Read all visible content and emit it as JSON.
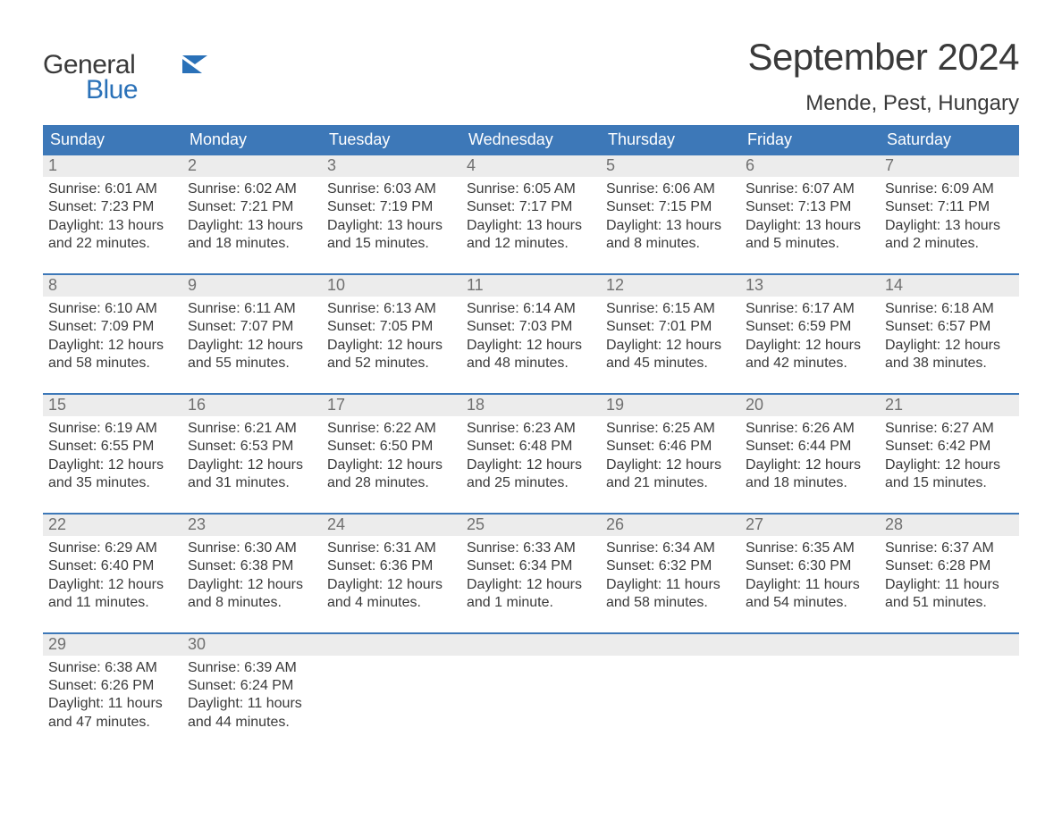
{
  "logo": {
    "line1": "General",
    "line2": "Blue",
    "flag_color": "#2a71b8"
  },
  "title": "September 2024",
  "subtitle": "Mende, Pest, Hungary",
  "colors": {
    "header_bg": "#3d78b8",
    "header_text": "#ffffff",
    "daynum_bg": "#ececec",
    "daynum_text": "#707070",
    "body_text": "#3a3a3a",
    "week_border": "#3d78b8",
    "page_bg": "#ffffff"
  },
  "typography": {
    "title_fontsize": 42,
    "subtitle_fontsize": 24,
    "weekday_fontsize": 18,
    "daynum_fontsize": 18,
    "body_fontsize": 16
  },
  "layout": {
    "columns": 7,
    "weeks": 5,
    "leading_blanks": 0,
    "trailing_blanks": 5
  },
  "weekdays": [
    "Sunday",
    "Monday",
    "Tuesday",
    "Wednesday",
    "Thursday",
    "Friday",
    "Saturday"
  ],
  "labels": {
    "sunrise": "Sunrise:",
    "sunset": "Sunset:",
    "daylight": "Daylight:"
  },
  "days": [
    {
      "n": 1,
      "sunrise": "6:01 AM",
      "sunset": "7:23 PM",
      "daylight": "13 hours and 22 minutes."
    },
    {
      "n": 2,
      "sunrise": "6:02 AM",
      "sunset": "7:21 PM",
      "daylight": "13 hours and 18 minutes."
    },
    {
      "n": 3,
      "sunrise": "6:03 AM",
      "sunset": "7:19 PM",
      "daylight": "13 hours and 15 minutes."
    },
    {
      "n": 4,
      "sunrise": "6:05 AM",
      "sunset": "7:17 PM",
      "daylight": "13 hours and 12 minutes."
    },
    {
      "n": 5,
      "sunrise": "6:06 AM",
      "sunset": "7:15 PM",
      "daylight": "13 hours and 8 minutes."
    },
    {
      "n": 6,
      "sunrise": "6:07 AM",
      "sunset": "7:13 PM",
      "daylight": "13 hours and 5 minutes."
    },
    {
      "n": 7,
      "sunrise": "6:09 AM",
      "sunset": "7:11 PM",
      "daylight": "13 hours and 2 minutes."
    },
    {
      "n": 8,
      "sunrise": "6:10 AM",
      "sunset": "7:09 PM",
      "daylight": "12 hours and 58 minutes."
    },
    {
      "n": 9,
      "sunrise": "6:11 AM",
      "sunset": "7:07 PM",
      "daylight": "12 hours and 55 minutes."
    },
    {
      "n": 10,
      "sunrise": "6:13 AM",
      "sunset": "7:05 PM",
      "daylight": "12 hours and 52 minutes."
    },
    {
      "n": 11,
      "sunrise": "6:14 AM",
      "sunset": "7:03 PM",
      "daylight": "12 hours and 48 minutes."
    },
    {
      "n": 12,
      "sunrise": "6:15 AM",
      "sunset": "7:01 PM",
      "daylight": "12 hours and 45 minutes."
    },
    {
      "n": 13,
      "sunrise": "6:17 AM",
      "sunset": "6:59 PM",
      "daylight": "12 hours and 42 minutes."
    },
    {
      "n": 14,
      "sunrise": "6:18 AM",
      "sunset": "6:57 PM",
      "daylight": "12 hours and 38 minutes."
    },
    {
      "n": 15,
      "sunrise": "6:19 AM",
      "sunset": "6:55 PM",
      "daylight": "12 hours and 35 minutes."
    },
    {
      "n": 16,
      "sunrise": "6:21 AM",
      "sunset": "6:53 PM",
      "daylight": "12 hours and 31 minutes."
    },
    {
      "n": 17,
      "sunrise": "6:22 AM",
      "sunset": "6:50 PM",
      "daylight": "12 hours and 28 minutes."
    },
    {
      "n": 18,
      "sunrise": "6:23 AM",
      "sunset": "6:48 PM",
      "daylight": "12 hours and 25 minutes."
    },
    {
      "n": 19,
      "sunrise": "6:25 AM",
      "sunset": "6:46 PM",
      "daylight": "12 hours and 21 minutes."
    },
    {
      "n": 20,
      "sunrise": "6:26 AM",
      "sunset": "6:44 PM",
      "daylight": "12 hours and 18 minutes."
    },
    {
      "n": 21,
      "sunrise": "6:27 AM",
      "sunset": "6:42 PM",
      "daylight": "12 hours and 15 minutes."
    },
    {
      "n": 22,
      "sunrise": "6:29 AM",
      "sunset": "6:40 PM",
      "daylight": "12 hours and 11 minutes."
    },
    {
      "n": 23,
      "sunrise": "6:30 AM",
      "sunset": "6:38 PM",
      "daylight": "12 hours and 8 minutes."
    },
    {
      "n": 24,
      "sunrise": "6:31 AM",
      "sunset": "6:36 PM",
      "daylight": "12 hours and 4 minutes."
    },
    {
      "n": 25,
      "sunrise": "6:33 AM",
      "sunset": "6:34 PM",
      "daylight": "12 hours and 1 minute."
    },
    {
      "n": 26,
      "sunrise": "6:34 AM",
      "sunset": "6:32 PM",
      "daylight": "11 hours and 58 minutes."
    },
    {
      "n": 27,
      "sunrise": "6:35 AM",
      "sunset": "6:30 PM",
      "daylight": "11 hours and 54 minutes."
    },
    {
      "n": 28,
      "sunrise": "6:37 AM",
      "sunset": "6:28 PM",
      "daylight": "11 hours and 51 minutes."
    },
    {
      "n": 29,
      "sunrise": "6:38 AM",
      "sunset": "6:26 PM",
      "daylight": "11 hours and 47 minutes."
    },
    {
      "n": 30,
      "sunrise": "6:39 AM",
      "sunset": "6:24 PM",
      "daylight": "11 hours and 44 minutes."
    }
  ]
}
